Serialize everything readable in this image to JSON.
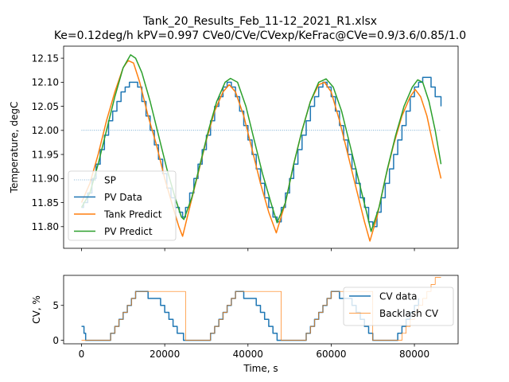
{
  "chart_data": [
    {
      "type": "line",
      "title": "Tank_20_Results_Feb_11-12_2021_R1.xlsx",
      "subtitle": "Ke=0.12deg/h kPV=0.997 CVe0/CVe/CVexp/KeFrac@CVe=0.9/3.6/0.85/1.0",
      "xlabel": "",
      "ylabel": "Temperature, degC",
      "xlim": [
        -4300,
        90500
      ],
      "ylim": [
        11.755,
        12.175
      ],
      "yticks": [
        11.8,
        11.85,
        11.9,
        11.95,
        12.0,
        12.05,
        12.1,
        12.15
      ],
      "ytick_labels": [
        "11.80",
        "11.85",
        "11.90",
        "11.95",
        "12.00",
        "12.05",
        "12.10",
        "12.15"
      ],
      "xticks": [
        0,
        20000,
        40000,
        60000,
        80000
      ],
      "legend_position": "lower-left",
      "series": [
        {
          "name": "SP",
          "style": "dotted",
          "color": "#1f77b4",
          "x": [
            0,
            86400
          ],
          "y": [
            12.0,
            12.0
          ]
        },
        {
          "name": "PV Data",
          "style": "step",
          "color": "#1f77b4",
          "x": [
            0,
            500,
            1500,
            2500,
            3500,
            4500,
            5500,
            6500,
            7500,
            8500,
            9500,
            10500,
            11500,
            12500,
            13500,
            14500,
            15500,
            16500,
            17500,
            18500,
            19500,
            20500,
            21500,
            22500,
            23500,
            24300,
            25000,
            26000,
            27000,
            28000,
            29000,
            30000,
            31000,
            32000,
            33000,
            34000,
            35000,
            36000,
            37000,
            38000,
            39000,
            40000,
            41000,
            42000,
            43000,
            44000,
            45000,
            46000,
            47000,
            48000,
            49000,
            50000,
            51000,
            52000,
            53000,
            54000,
            55000,
            56000,
            57000,
            58000,
            59000,
            60000,
            61000,
            62000,
            63000,
            64000,
            65000,
            66000,
            67000,
            68000,
            69000,
            70000,
            71000,
            72000,
            73000,
            74000,
            75000,
            76000,
            77000,
            78000,
            79000,
            80000,
            81000,
            82000,
            83000,
            84000,
            85000,
            86400
          ],
          "y": [
            11.84,
            11.85,
            11.87,
            11.9,
            11.93,
            11.96,
            11.99,
            12.02,
            12.04,
            12.06,
            12.08,
            12.09,
            12.1,
            12.1,
            12.09,
            12.06,
            12.03,
            12.0,
            11.97,
            11.94,
            11.91,
            11.88,
            11.86,
            11.84,
            11.83,
            11.82,
            11.84,
            11.87,
            11.9,
            11.93,
            11.96,
            11.99,
            12.02,
            12.05,
            12.07,
            12.09,
            12.1,
            12.09,
            12.07,
            12.04,
            12.01,
            11.98,
            11.95,
            11.92,
            11.89,
            11.86,
            11.84,
            11.82,
            11.81,
            11.84,
            11.87,
            11.9,
            11.93,
            11.96,
            11.99,
            12.02,
            12.05,
            12.07,
            12.09,
            12.1,
            12.09,
            12.07,
            12.04,
            12.01,
            11.98,
            11.95,
            11.92,
            11.89,
            11.86,
            11.84,
            11.81,
            11.8,
            11.83,
            11.86,
            11.89,
            11.92,
            11.95,
            11.98,
            12.01,
            12.04,
            12.07,
            12.09,
            12.1,
            12.11,
            12.11,
            12.09,
            12.07,
            12.05
          ]
        },
        {
          "name": "Tank Predict",
          "style": "line",
          "color": "#ff7f0e",
          "x": [
            0,
            2000,
            4000,
            6000,
            8000,
            10000,
            11200,
            12500,
            14000,
            16000,
            18000,
            20000,
            22000,
            23400,
            24300,
            26000,
            28000,
            30000,
            32000,
            34000,
            35500,
            37000,
            39000,
            41000,
            43000,
            45000,
            46800,
            49000,
            51000,
            53000,
            55000,
            57000,
            58400,
            60000,
            62000,
            64000,
            66000,
            68000,
            69300,
            71000,
            73000,
            75000,
            77000,
            79000,
            80200,
            81500,
            83000,
            84500,
            86400
          ],
          "y": [
            11.85,
            11.89,
            11.95,
            12.02,
            12.08,
            12.13,
            12.145,
            12.14,
            12.1,
            12.03,
            11.97,
            11.9,
            11.84,
            11.8,
            11.78,
            11.84,
            11.91,
            11.98,
            12.04,
            12.08,
            12.095,
            12.08,
            12.03,
            11.96,
            11.89,
            11.83,
            11.787,
            11.85,
            11.93,
            12.0,
            12.06,
            12.095,
            12.1,
            12.08,
            12.02,
            11.95,
            11.88,
            11.81,
            11.77,
            11.82,
            11.9,
            11.97,
            12.03,
            12.07,
            12.085,
            12.07,
            12.03,
            11.97,
            11.9
          ]
        },
        {
          "name": "PV Predict",
          "style": "line",
          "color": "#2ca02c",
          "x": [
            0,
            2000,
            4000,
            6000,
            8000,
            10000,
            11800,
            13000,
            14500,
            16500,
            18500,
            20500,
            22500,
            24000,
            24600,
            26500,
            28500,
            30500,
            32500,
            34500,
            35800,
            37500,
            39500,
            41500,
            43500,
            45500,
            47000,
            49000,
            51000,
            53000,
            55000,
            57000,
            58800,
            60500,
            62500,
            64500,
            66500,
            68500,
            69600,
            71500,
            73500,
            75500,
            77500,
            79500,
            80800,
            82000,
            83500,
            85000,
            86400
          ],
          "y": [
            11.84,
            11.87,
            11.93,
            12.0,
            12.07,
            12.13,
            12.157,
            12.15,
            12.12,
            12.06,
            11.99,
            11.92,
            11.86,
            11.82,
            11.815,
            11.86,
            11.93,
            12.0,
            12.06,
            12.1,
            12.108,
            12.1,
            12.05,
            11.98,
            11.91,
            11.85,
            11.808,
            11.85,
            11.93,
            12.0,
            12.06,
            12.1,
            12.107,
            12.09,
            12.04,
            11.97,
            11.9,
            11.83,
            11.79,
            11.84,
            11.92,
            11.99,
            12.05,
            12.09,
            12.105,
            12.1,
            12.06,
            12.0,
            11.93
          ]
        }
      ]
    },
    {
      "type": "line",
      "xlabel": "Time, s",
      "ylabel": "CV, %",
      "xlim": [
        -4300,
        90500
      ],
      "ylim": [
        -0.5,
        9.3
      ],
      "yticks": [
        0,
        5
      ],
      "ytick_labels": [
        "0",
        "5"
      ],
      "xticks": [
        0,
        20000,
        40000,
        60000,
        80000
      ],
      "xtick_labels": [
        "0",
        "20000",
        "40000",
        "60000",
        "80000"
      ],
      "legend_position": "right",
      "series": [
        {
          "name": "CV data",
          "style": "step",
          "color": "#1f77b4",
          "x": [
            0,
            600,
            1000,
            7000,
            8000,
            9000,
            10000,
            11000,
            12000,
            13000,
            14000,
            15000,
            16000,
            19000,
            20000,
            21000,
            22000,
            23000,
            24500,
            31000,
            32000,
            33000,
            34000,
            35000,
            36000,
            37000,
            38000,
            39000,
            42000,
            43000,
            44000,
            45000,
            46000,
            47000,
            54000,
            55000,
            56000,
            57000,
            58000,
            59000,
            60000,
            61000,
            62000,
            65000,
            66000,
            67000,
            68000,
            69000,
            70000,
            76000,
            77000,
            78000,
            79000,
            80000,
            81000
          ],
          "y": [
            2,
            1,
            0,
            1,
            2,
            3,
            4,
            5,
            6,
            7,
            7,
            7,
            6,
            5,
            4,
            3,
            2,
            1,
            0,
            1,
            2,
            3,
            4,
            5,
            6,
            7,
            7,
            6,
            5,
            4,
            3,
            2,
            1,
            0,
            1,
            2,
            3,
            4,
            5,
            6,
            7,
            7,
            6,
            5,
            4,
            3,
            2,
            1,
            0,
            1,
            2,
            3,
            4,
            5,
            6
          ]
        },
        {
          "name": "Backlash CV",
          "style": "step",
          "color": "#ff7f0e",
          "x": [
            0,
            7000,
            8000,
            9000,
            10000,
            11000,
            12000,
            13000,
            24000,
            25000,
            31000,
            32000,
            33000,
            34000,
            35000,
            36000,
            37000,
            47000,
            48000,
            54000,
            55000,
            56000,
            57000,
            58000,
            59000,
            60000,
            70000,
            71000,
            77000,
            78000,
            79000,
            80000,
            81000,
            82000,
            83000,
            84000,
            85000,
            86400
          ],
          "y": [
            0,
            1,
            2,
            3,
            4,
            5,
            6,
            7,
            7,
            0,
            1,
            2,
            3,
            4,
            5,
            6,
            7,
            7,
            0,
            1,
            2,
            3,
            4,
            5,
            6,
            7,
            0,
            0,
            1,
            2,
            3,
            4,
            5,
            6,
            7,
            8,
            9,
            9
          ]
        }
      ]
    }
  ]
}
